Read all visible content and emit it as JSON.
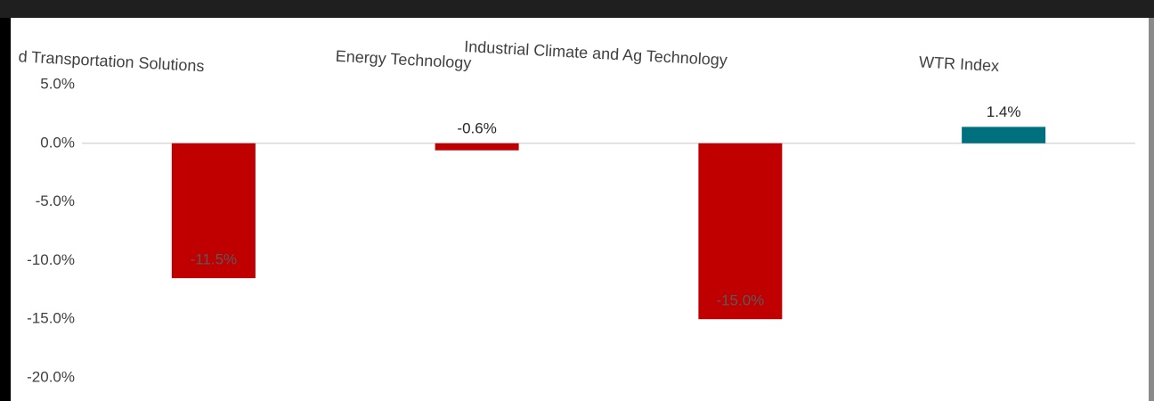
{
  "chart_data": {
    "type": "bar",
    "categories": [
      "d Transportation Solutions",
      "Energy Technology",
      "Industrial Climate and Ag Technology",
      "WTR Index"
    ],
    "values": [
      -11.5,
      -0.6,
      -15.0,
      1.4
    ],
    "value_labels": [
      "-11.5%",
      "-0.6%",
      "-15.0%",
      "1.4%"
    ],
    "colors": [
      "#c00000",
      "#c00000",
      "#c00000",
      "#00707f"
    ],
    "ylim": [
      -20,
      5
    ],
    "yticks": [
      {
        "value": 5,
        "label": "5.0%"
      },
      {
        "value": 0,
        "label": "0.0%"
      },
      {
        "value": -5,
        "label": "-5.0%"
      },
      {
        "value": -10,
        "label": "-10.0%"
      },
      {
        "value": -15,
        "label": "-15.0%"
      },
      {
        "value": -20,
        "label": "-20.0%"
      }
    ]
  }
}
